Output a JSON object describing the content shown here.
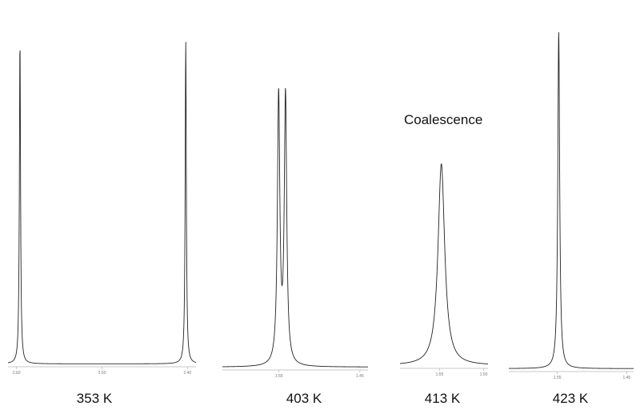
{
  "figure": {
    "annotation": "Coalescence"
  },
  "chart_data": [
    {
      "type": "line",
      "title": "353 K",
      "x_ticks": [
        "2.60",
        "2.50",
        "2.40"
      ],
      "peaks": [
        {
          "position": 2.596,
          "height": 1.0,
          "width": 0.0008
        },
        {
          "position": 2.402,
          "height": 1.0,
          "width": 0.0008
        }
      ],
      "xlim": [
        2.61,
        2.39
      ],
      "grid": false
    },
    {
      "type": "line",
      "title": "403 K",
      "x_ticks": [
        "1.55",
        "1.45"
      ],
      "peaks": [
        {
          "position": 1.5505,
          "height": 0.82,
          "width": 0.0018
        },
        {
          "position": 1.542,
          "height": 0.82,
          "width": 0.0018
        }
      ],
      "xlim": [
        1.62,
        1.44
      ],
      "grid": false
    },
    {
      "type": "line",
      "title": "413 K",
      "x_ticks": [
        "1.55",
        "1.50"
      ],
      "peaks": [
        {
          "position": 1.548,
          "height": 0.62,
          "width": 0.0046
        }
      ],
      "xlim": [
        1.595,
        1.495
      ],
      "grid": false
    },
    {
      "type": "line",
      "title": "423 K",
      "x_ticks": [
        "1.55",
        "1.45"
      ],
      "peaks": [
        {
          "position": 1.548,
          "height": 1.0,
          "width": 0.0016
        }
      ],
      "xlim": [
        1.62,
        1.44
      ],
      "grid": false
    }
  ]
}
